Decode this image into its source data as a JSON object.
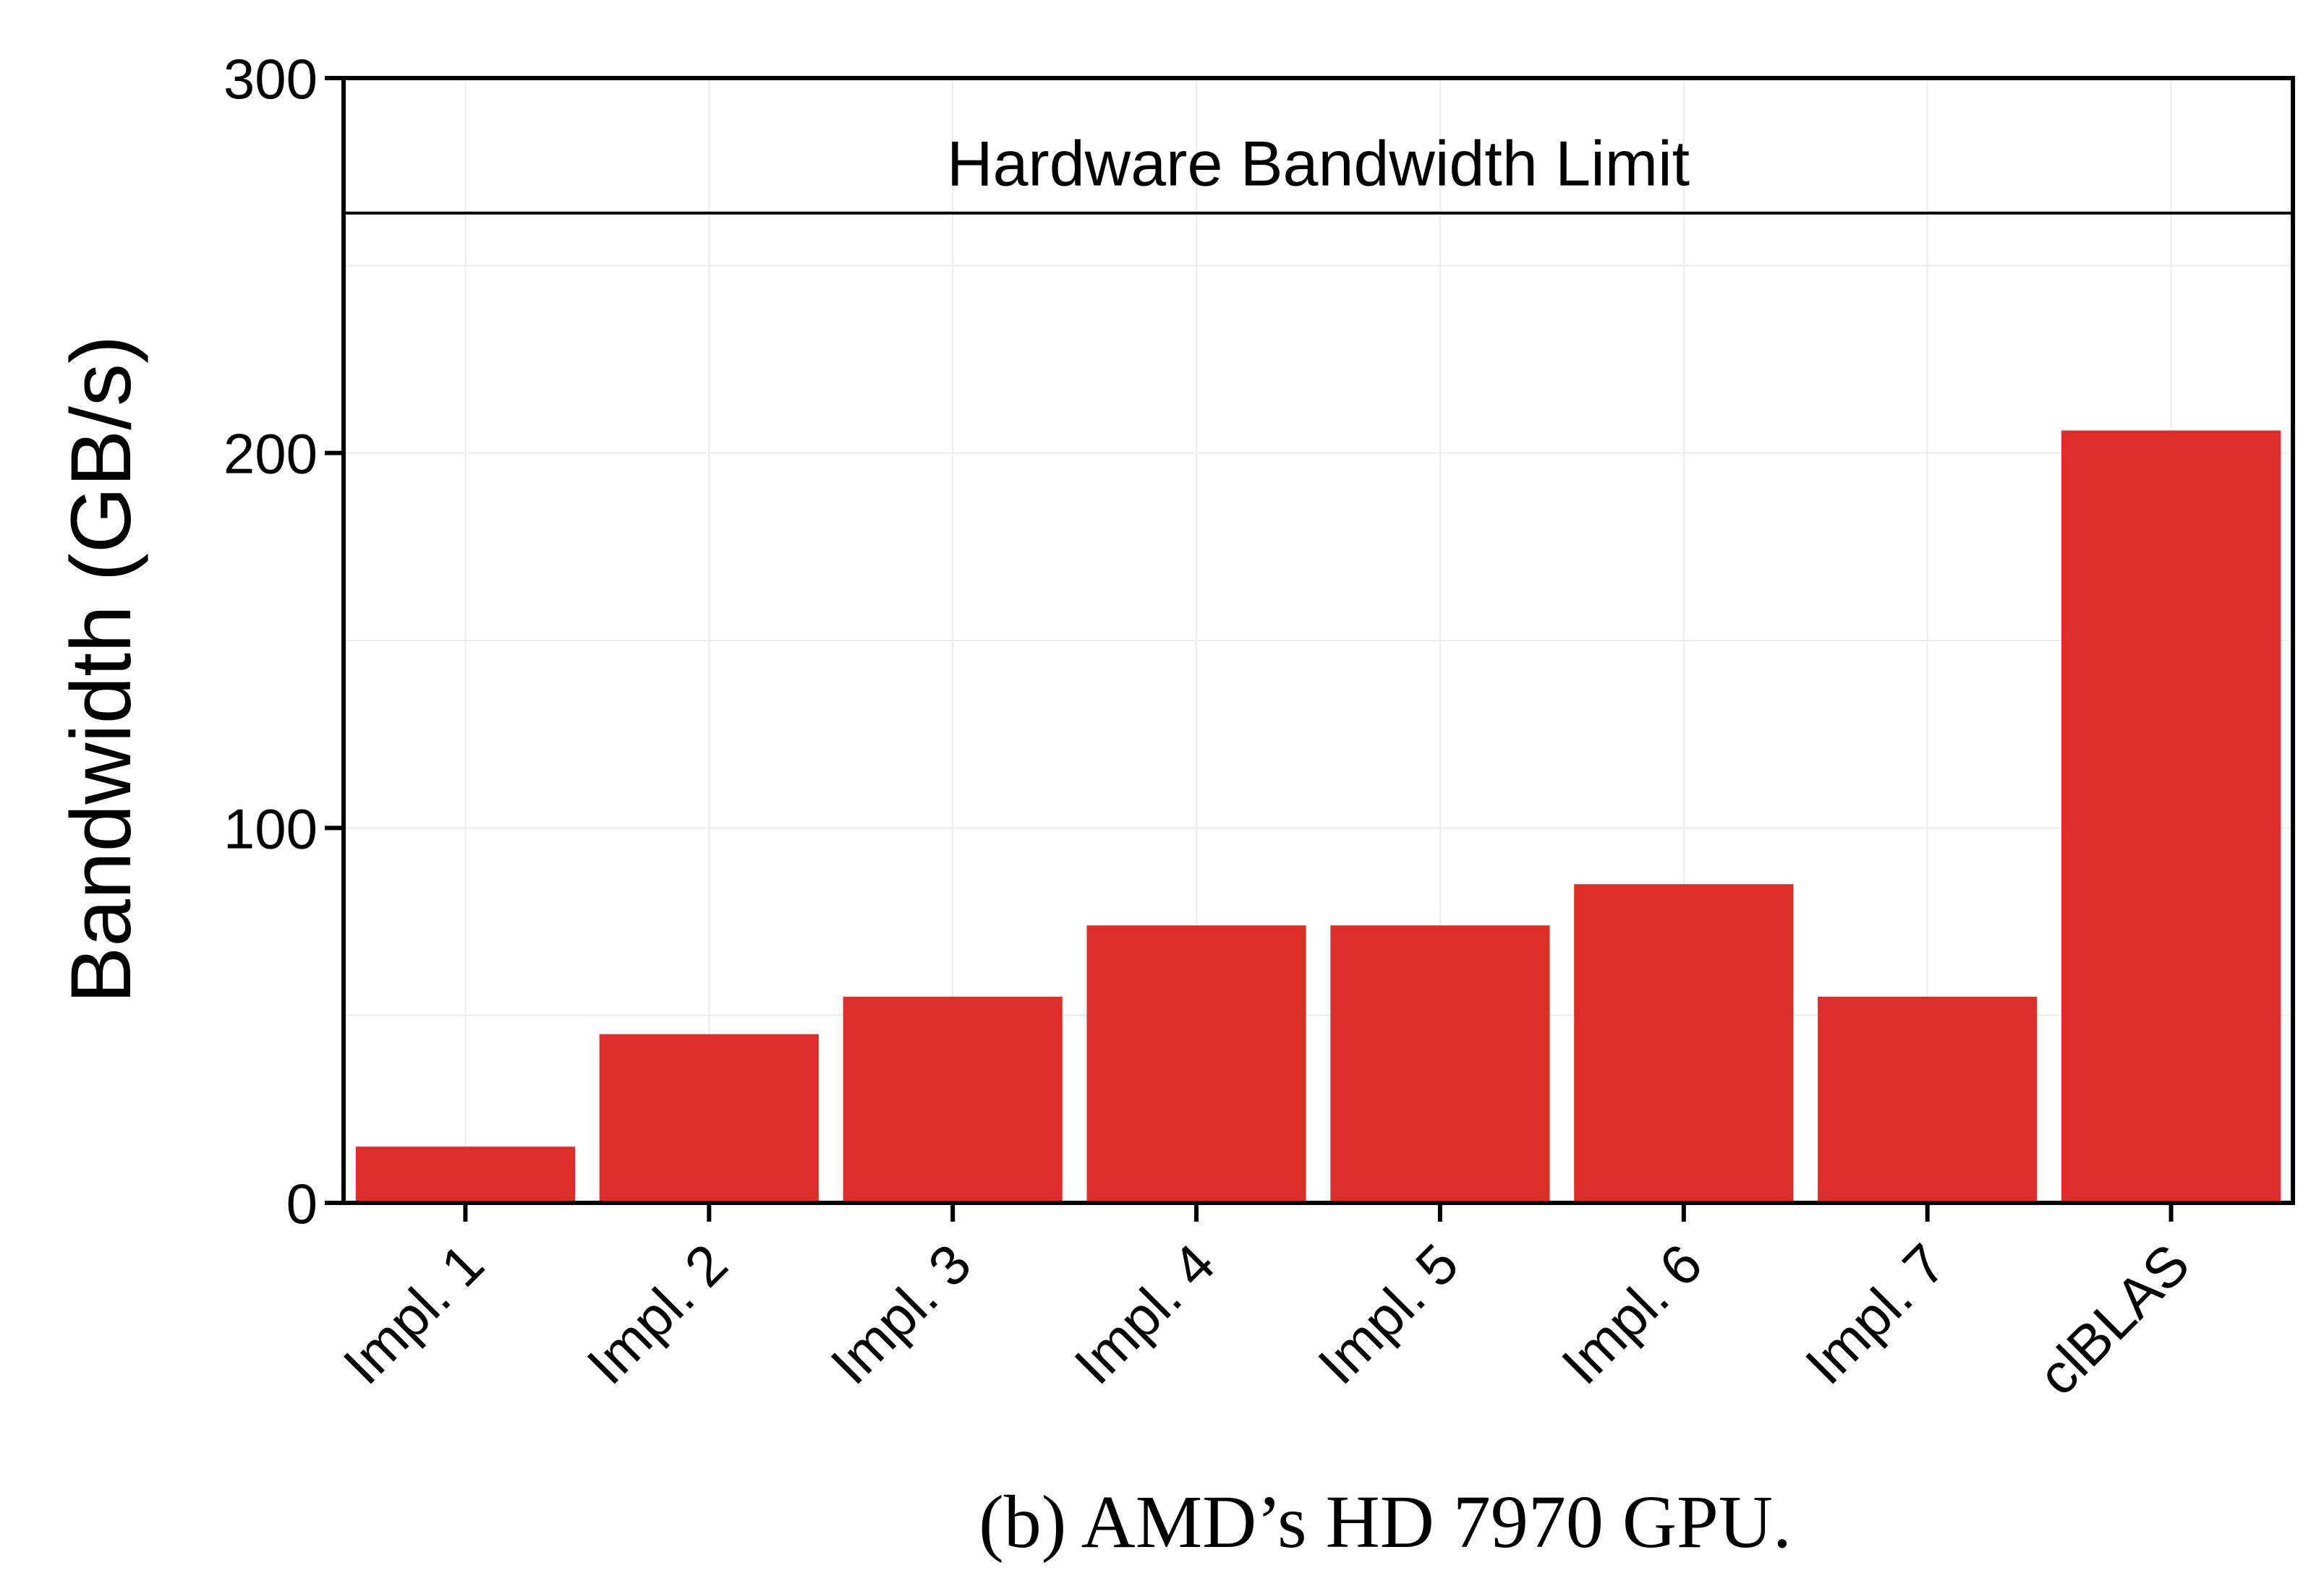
{
  "chart_data": {
    "type": "bar",
    "categories": [
      "Impl. 1",
      "Impl. 2",
      "Impl. 3",
      "Impl. 4",
      "Impl. 5",
      "Impl. 6",
      "Impl. 7",
      "clBLAS"
    ],
    "values": [
      15,
      45,
      55,
      74,
      74,
      85,
      55,
      206
    ],
    "ylabel": "Bandwidth (GB/s)",
    "ylim": [
      0,
      300
    ],
    "yticks": [
      0,
      100,
      200,
      300
    ],
    "grid": true,
    "bar_color": "#dc2f2a",
    "reference_line": {
      "value": 264,
      "label": "Hardware Bandwidth Limit"
    }
  },
  "caption": "(b) AMD’s HD 7970 GPU."
}
